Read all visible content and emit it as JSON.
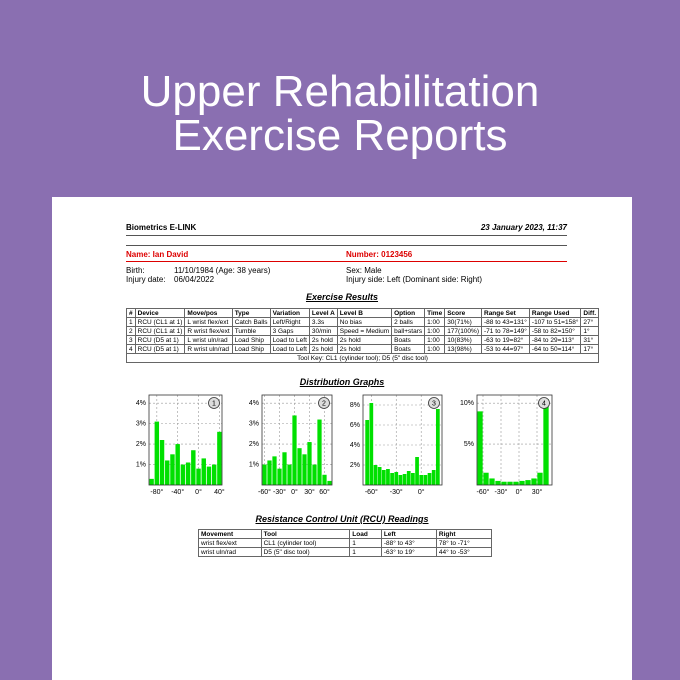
{
  "banner": {
    "title_line1": "Upper Rehabilitation",
    "title_line2": "Exercise Reports"
  },
  "report": {
    "header": {
      "app": "Biometrics E-LINK",
      "date": "23 January 2023, 11:37"
    },
    "patient": {
      "name": "Name: Ian David",
      "number": "Number: 0123456",
      "birth_label": "Birth:",
      "birth": "11/10/1984  (Age: 38 years)",
      "injury_date_label": "Injury date:",
      "injury_date": "06/04/2022",
      "sex": "Sex: Male",
      "injury_side": "Injury side: Left  (Dominant side: Right)"
    },
    "exercise_results": {
      "title": "Exercise Results",
      "columns": [
        "#",
        "Device",
        "Move/pos",
        "Type",
        "Variation",
        "Level A",
        "Level B",
        "Option",
        "Time",
        "Score",
        "Range Set",
        "Range Used",
        "Diff."
      ],
      "rows": [
        [
          "1",
          "RCU (CL1 at 1)",
          "L  wrist flex/ext",
          "Catch Balls",
          "Left/Right",
          "3.3s",
          "No bias",
          "2 balls",
          "1:00",
          "30(71%)",
          "-88 to 43=131°",
          "-107 to 51=158°",
          "27°"
        ],
        [
          "2",
          "RCU (CL1 at 1)",
          "R  wrist flex/ext",
          "Tumble",
          "3 Gaps",
          "30/min",
          "Speed = Medium",
          "ball+stars",
          "1:00",
          "177(100%)",
          "-71 to 78=149°",
          "-58 to 82=150°",
          "1°"
        ],
        [
          "3",
          "RCU (D5 at 1)",
          "L  wrist uln/rad",
          "Load Ship",
          "Load to Left",
          "2s hold",
          "2s hold",
          "Boats",
          "1:00",
          "10(83%)",
          "-63 to 19=82°",
          "-84 to 29=113°",
          "31°"
        ],
        [
          "4",
          "RCU (D5 at 1)",
          "R  wrist uln/rad",
          "Load Ship",
          "Load to Left",
          "2s hold",
          "2s hold",
          "Boats",
          "1:00",
          "13(98%)",
          "-53 to 44=97°",
          "-64 to 50=114°",
          "17°"
        ]
      ],
      "key": "Tool Key: CL1 (cylinder tool); D5 (5\" disc tool)"
    },
    "distribution": {
      "title": "Distribution Graphs",
      "color": "#00e000",
      "graphs": [
        {
          "type": "bar",
          "number": "1",
          "xlim": [
            -95,
            45
          ],
          "ylim": [
            0,
            4.4
          ],
          "yticks": [
            {
              "value": 1,
              "label": "1%"
            },
            {
              "value": 2,
              "label": "2%"
            },
            {
              "value": 3,
              "label": "3%"
            },
            {
              "value": 4,
              "label": "4%"
            }
          ],
          "xticks": [
            {
              "value": -80,
              "label": "-80°"
            },
            {
              "value": -40,
              "label": "-40°"
            },
            {
              "value": 0,
              "label": "0°"
            },
            {
              "value": 40,
              "label": "40°"
            }
          ],
          "x": [
            -90,
            -80,
            -70,
            -60,
            -50,
            -40,
            -30,
            -20,
            -10,
            0,
            10,
            20,
            30,
            40
          ],
          "values": [
            0.3,
            3.1,
            2.2,
            1.2,
            1.5,
            2.0,
            1.0,
            1.1,
            1.7,
            0.8,
            1.3,
            0.9,
            1.0,
            2.6
          ]
        },
        {
          "type": "bar",
          "number": "2",
          "xlim": [
            -65,
            75
          ],
          "ylim": [
            0,
            4.4
          ],
          "yticks": [
            {
              "value": 1,
              "label": "1%"
            },
            {
              "value": 2,
              "label": "2%"
            },
            {
              "value": 3,
              "label": "3%"
            },
            {
              "value": 4,
              "label": "4%"
            }
          ],
          "xticks": [
            {
              "value": -60,
              "label": "-60°"
            },
            {
              "value": -30,
              "label": "-30°"
            },
            {
              "value": 0,
              "label": "0°"
            },
            {
              "value": 30,
              "label": "30°"
            },
            {
              "value": 60,
              "label": "60°"
            }
          ],
          "x": [
            -60,
            -50,
            -40,
            -30,
            -20,
            -10,
            0,
            10,
            20,
            30,
            40,
            50,
            60,
            70
          ],
          "values": [
            1.0,
            1.2,
            1.4,
            0.8,
            1.6,
            1.0,
            3.4,
            1.8,
            1.5,
            2.1,
            1.0,
            3.2,
            0.5,
            0.2
          ]
        },
        {
          "type": "bar",
          "number": "3",
          "xlim": [
            -70,
            25
          ],
          "ylim": [
            0,
            9
          ],
          "yticks": [
            {
              "value": 2,
              "label": "2%"
            },
            {
              "value": 4,
              "label": "4%"
            },
            {
              "value": 6,
              "label": "6%"
            },
            {
              "value": 8,
              "label": "8%"
            }
          ],
          "xticks": [
            {
              "value": -60,
              "label": "-60°"
            },
            {
              "value": -30,
              "label": "-30°"
            },
            {
              "value": 0,
              "label": "0°"
            }
          ],
          "x": [
            -65,
            -60,
            -55,
            -50,
            -45,
            -40,
            -35,
            -30,
            -25,
            -20,
            -15,
            -10,
            -5,
            0,
            5,
            10,
            15,
            20
          ],
          "values": [
            6.5,
            8.2,
            2.0,
            1.8,
            1.5,
            1.6,
            1.2,
            1.3,
            1.0,
            1.1,
            1.4,
            1.2,
            2.8,
            1.0,
            1.0,
            1.2,
            1.5,
            7.6
          ]
        },
        {
          "type": "bar",
          "number": "4",
          "xlim": [
            -70,
            55
          ],
          "ylim": [
            0,
            11
          ],
          "yticks": [
            {
              "value": 5,
              "label": "5%"
            },
            {
              "value": 10,
              "label": "10%"
            }
          ],
          "xticks": [
            {
              "value": -60,
              "label": "-60°"
            },
            {
              "value": -30,
              "label": "-30°"
            },
            {
              "value": 0,
              "label": "0°"
            },
            {
              "value": 30,
              "label": "30°"
            }
          ],
          "x": [
            -65,
            -55,
            -45,
            -35,
            -25,
            -15,
            -5,
            5,
            15,
            25,
            35,
            45
          ],
          "values": [
            9.0,
            1.5,
            0.8,
            0.5,
            0.4,
            0.4,
            0.4,
            0.5,
            0.6,
            0.8,
            1.5,
            10.5
          ]
        }
      ]
    },
    "rcu": {
      "title": "Resistance Control Unit (RCU) Readings",
      "columns": [
        "Movement",
        "Tool",
        "Load",
        "Left",
        "Right"
      ],
      "rows": [
        [
          "wrist flex/ext",
          "CL1 (cylinder tool)",
          "1",
          "-88° to 43°",
          "78° to -71°"
        ],
        [
          "wrist uln/rad",
          "D5 (5\" disc tool)",
          "1",
          "-63° to 19°",
          "44° to -53°"
        ]
      ]
    }
  }
}
